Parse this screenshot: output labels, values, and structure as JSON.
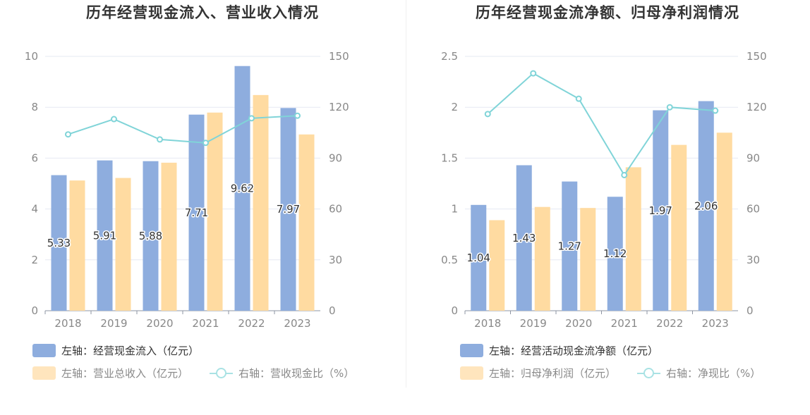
{
  "colors": {
    "bar_primary": "#8eadde",
    "bar_secondary": "#ffdba1",
    "line": "#80d4d8",
    "legend_primary_swatch": "#8eadde",
    "legend_secondary_swatch": "#ffe5bd",
    "legend_line": "#a9e2e4"
  },
  "chart_data": [
    {
      "type": "bar",
      "title": "历年经营现金流入、营业收入情况",
      "categories": [
        "2018",
        "2019",
        "2020",
        "2021",
        "2022",
        "2023"
      ],
      "y_left": {
        "ylim": [
          0,
          10
        ],
        "ticks": [
          "0",
          "2",
          "4",
          "6",
          "8",
          "10"
        ]
      },
      "y_right": {
        "ylim": [
          0,
          150
        ],
        "ticks": [
          "0",
          "30",
          "60",
          "90",
          "120",
          "150"
        ]
      },
      "grid": true,
      "legend_position": "bottom-left",
      "series": [
        {
          "name": "左轴：经营现金流入（亿元）",
          "axis": "left",
          "kind": "bar",
          "values": [
            5.33,
            5.91,
            5.88,
            7.71,
            9.62,
            7.97
          ],
          "labels": [
            "5.33",
            "5.91",
            "5.88",
            "7.71",
            "9.62",
            "7.97"
          ]
        },
        {
          "name": "左轴：营业总收入（亿元）",
          "axis": "left",
          "kind": "bar",
          "values": [
            5.12,
            5.22,
            5.82,
            7.79,
            8.48,
            6.93
          ]
        },
        {
          "name": "右轴：营收现金比（%）",
          "axis": "right",
          "kind": "line",
          "values": [
            104,
            113,
            101,
            99,
            113.5,
            115
          ]
        }
      ]
    },
    {
      "type": "bar",
      "title": "历年经营现金流净额、归母净利润情况",
      "categories": [
        "2018",
        "2019",
        "2020",
        "2021",
        "2022",
        "2023"
      ],
      "y_left": {
        "ylim": [
          0,
          2.5
        ],
        "ticks": [
          "0",
          "0.5",
          "1",
          "1.5",
          "2",
          "2.5"
        ]
      },
      "y_right": {
        "ylim": [
          0,
          150
        ],
        "ticks": [
          "0",
          "30",
          "60",
          "90",
          "120",
          "150"
        ]
      },
      "grid": true,
      "legend_position": "bottom-left",
      "series": [
        {
          "name": "左轴：经营活动现金流净额（亿元）",
          "axis": "left",
          "kind": "bar",
          "values": [
            1.04,
            1.43,
            1.27,
            1.12,
            1.97,
            2.06
          ],
          "labels": [
            "1.04",
            "1.43",
            "1.27",
            "1.12",
            "1.97",
            "2.06"
          ]
        },
        {
          "name": "左轴：归母净利润（亿元）",
          "axis": "left",
          "kind": "bar",
          "values": [
            0.89,
            1.02,
            1.01,
            1.41,
            1.63,
            1.75
          ]
        },
        {
          "name": "右轴：净现比（%）",
          "axis": "right",
          "kind": "line",
          "values": [
            116,
            140,
            125,
            80,
            120,
            118
          ]
        }
      ]
    }
  ]
}
